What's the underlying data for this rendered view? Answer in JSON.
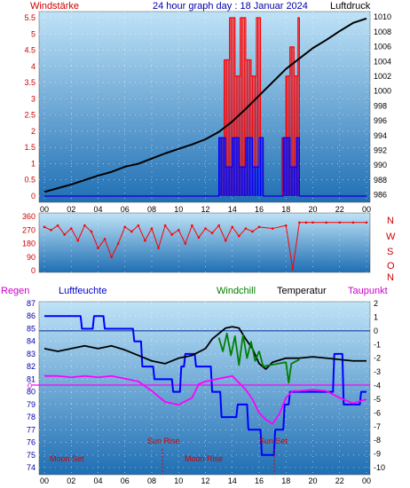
{
  "header": {
    "left_label": "Windstärke",
    "title": "24 hour graph day : 18 Januar 2024",
    "right_label": "Luftdruck"
  },
  "colors": {
    "panel_top": "#bfe3f7",
    "panel_bottom": "#1f6fb4",
    "wind_gust": "#ff0000",
    "wind_avg": "#0000ff",
    "pressure": "#000000",
    "direction": "#ff0000",
    "temperature": "#000000",
    "windchill": "#008000",
    "humidity": "#0000ff",
    "dewpoint": "#ff00ff",
    "zero_line": "#ff00ff"
  },
  "legend": {
    "regen": "Regen",
    "luftfeuchte": "Luftfeuchte",
    "windchill": "Windchill",
    "temperatur": "Temperatur",
    "taupunkt": "Taupunkt"
  },
  "x_ticks": [
    "00",
    "02",
    "04",
    "06",
    "08",
    "10",
    "12",
    "14",
    "16",
    "18",
    "20",
    "22",
    "00"
  ],
  "wind_panel": {
    "left_ticks": [
      "0",
      "0.5",
      "1",
      "1.5",
      "2",
      "2.5",
      "3",
      "3.5",
      "4",
      "4.5",
      "5",
      "5.5"
    ],
    "right_ticks": [
      "986",
      "988",
      "990",
      "992",
      "994",
      "996",
      "998",
      "1000",
      "1002",
      "1004",
      "1006",
      "1008",
      "1010"
    ]
  },
  "direction_panel": {
    "ticks": [
      "0",
      "90",
      "180",
      "270",
      "360"
    ],
    "compass": [
      "N",
      "W",
      "S",
      "O",
      "N"
    ]
  },
  "temp_panel": {
    "left_ticks": [
      "74",
      "75",
      "76",
      "77",
      "78",
      "79",
      "80",
      "81",
      "82",
      "83",
      "84",
      "85",
      "86",
      "87"
    ],
    "right_ticks": [
      "-10",
      "-9",
      "-8",
      "-7",
      "-6",
      "-5",
      "-4",
      "-3",
      "-2",
      "-1",
      "0",
      "1",
      "2"
    ],
    "rain_zero": "0",
    "events": {
      "moon_set": "Moon Set",
      "sun_rise": "Sun Rise",
      "moon_rise": "Moon Rise",
      "sun_set": "Sun Set"
    }
  },
  "chart_data": [
    {
      "type": "line",
      "title": "24 hour graph day : 18 Januar 2024",
      "ylabel": "Windstärke",
      "y2label": "Luftdruck",
      "xlim": [
        0,
        24
      ],
      "ylim": [
        0,
        5.5
      ],
      "y2lim": [
        985,
        1010.5
      ],
      "series": [
        {
          "name": "Luftdruck",
          "axis": "right",
          "x": [
            0,
            1,
            2,
            3,
            4,
            5,
            6,
            7,
            8,
            9,
            10,
            11,
            12,
            13,
            14,
            15,
            16,
            17,
            18,
            19,
            20,
            21,
            22,
            23,
            24
          ],
          "y": [
            986.4,
            986.9,
            987.4,
            988.0,
            988.6,
            989.1,
            989.8,
            990.2,
            990.9,
            991.6,
            992.2,
            992.8,
            993.5,
            994.5,
            995.9,
            997.6,
            999.4,
            1001.2,
            1003.0,
            1004.4,
            1005.8,
            1006.9,
            1008.1,
            1009.2,
            1009.8
          ]
        },
        {
          "name": "Böen",
          "axis": "left",
          "x": [
            0,
            12.9,
            13.0,
            13.4,
            13.8,
            14.2,
            14.6,
            15.0,
            15.4,
            15.8,
            16.1,
            16.3,
            17.4,
            17.7,
            18.0,
            18.3,
            18.6,
            18.9,
            19.0,
            24
          ],
          "y": [
            0,
            0,
            1.8,
            4.2,
            5.5,
            3.7,
            5.5,
            4.2,
            3.7,
            5.5,
            1.8,
            0,
            0,
            1.8,
            3.7,
            4.6,
            3.7,
            5.5,
            0,
            0
          ]
        },
        {
          "name": "Mittelwind",
          "axis": "left",
          "x": [
            0,
            12.9,
            13.0,
            13.5,
            14.0,
            14.5,
            15.0,
            15.5,
            16.0,
            16.3,
            17.4,
            17.8,
            18.3,
            18.8,
            19.0,
            24
          ],
          "y": [
            0,
            0,
            1.8,
            0.9,
            1.8,
            0.9,
            1.8,
            0.9,
            1.8,
            0,
            0,
            1.8,
            0.9,
            1.8,
            0,
            0
          ]
        }
      ]
    },
    {
      "type": "scatter",
      "ylabel": "Windrichtung",
      "xlim": [
        0,
        24
      ],
      "ylim": [
        0,
        360
      ],
      "series": [
        {
          "name": "Windrichtung",
          "x": [
            0,
            0.5,
            1,
            1.5,
            2,
            2.5,
            3,
            3.5,
            4,
            4.5,
            5,
            5.5,
            6,
            6.5,
            7,
            7.5,
            8,
            8.5,
            9,
            9.5,
            10,
            10.5,
            11,
            11.5,
            12,
            12.5,
            13,
            13.5,
            14,
            14.5,
            15,
            15.5,
            16,
            17,
            18,
            18.5,
            19,
            19.5,
            20,
            21,
            22,
            23,
            24
          ],
          "y": [
            290,
            270,
            300,
            240,
            280,
            200,
            300,
            260,
            150,
            210,
            90,
            180,
            290,
            260,
            300,
            200,
            280,
            150,
            300,
            240,
            270,
            180,
            300,
            220,
            280,
            250,
            300,
            200,
            290,
            230,
            280,
            260,
            290,
            280,
            300,
            10,
            320,
            320,
            320,
            320,
            320,
            320,
            320
          ]
        }
      ]
    },
    {
      "type": "line",
      "ylabel": "Luftfeuchte",
      "y2label": "Temperatur",
      "xlim": [
        0,
        24
      ],
      "ylim": [
        74,
        87
      ],
      "y2lim": [
        -10,
        2
      ],
      "series": [
        {
          "name": "Luftfeuchte",
          "axis": "left",
          "x": [
            0,
            2.7,
            2.8,
            3.6,
            3.7,
            4.4,
            4.5,
            6.6,
            6.7,
            7.2,
            7.3,
            8.1,
            8.2,
            9.5,
            9.6,
            10.1,
            10.2,
            10.4,
            10.5,
            11.2,
            11.3,
            12.4,
            12.5,
            13.1,
            13.2,
            14.3,
            14.4,
            15.1,
            15.2,
            16.1,
            16.2,
            17.1,
            17.2,
            17.8,
            17.9,
            18.2,
            18.3,
            21.5,
            21.6,
            22.2,
            22.3,
            23.5,
            23.6,
            24
          ],
          "y": [
            86,
            86,
            85,
            85,
            86,
            86,
            85,
            85,
            84,
            84,
            82,
            82,
            81,
            81,
            80,
            80,
            82,
            82,
            83,
            83,
            82,
            82,
            80,
            80,
            78,
            78,
            79,
            79,
            77,
            77,
            75,
            75,
            77,
            77,
            79,
            79,
            80,
            80,
            83,
            83,
            79,
            79,
            80,
            80
          ]
        },
        {
          "name": "Temperatur",
          "axis": "right",
          "x": [
            0,
            1,
            2,
            3,
            4,
            5,
            6,
            7,
            8,
            9,
            10,
            11,
            12,
            12.5,
            13,
            13.5,
            14,
            14.5,
            15,
            15.5,
            16,
            16.5,
            17,
            18,
            19,
            20,
            21,
            22,
            23,
            24
          ],
          "y": [
            -1.3,
            -1.5,
            -1.3,
            -1.1,
            -1.3,
            -1.1,
            -1.4,
            -1.8,
            -2.2,
            -2.4,
            -2.0,
            -1.8,
            -1.3,
            -0.6,
            -0.2,
            0.2,
            0.3,
            0.2,
            -0.6,
            -1.3,
            -2.4,
            -2.8,
            -2.3,
            -2.0,
            -2.0,
            -1.9,
            -2.0,
            -2.1,
            -2.2,
            -2.2
          ]
        },
        {
          "name": "Windchill",
          "axis": "right",
          "x": [
            13,
            13.3,
            13.6,
            13.9,
            14.2,
            14.5,
            14.8,
            15.1,
            15.4,
            15.7,
            16.0,
            16.3,
            18.0,
            18.2,
            18.4,
            19.0
          ],
          "y": [
            -0.5,
            -1.5,
            -0.2,
            -1.8,
            -0.4,
            -2.5,
            -0.3,
            -2.0,
            -0.8,
            -2.2,
            -1.5,
            -2.6,
            -2.3,
            -3.8,
            -2.4,
            -2.1
          ]
        },
        {
          "name": "Taupunkt",
          "axis": "right",
          "x": [
            0,
            1,
            2,
            3,
            4,
            5,
            6,
            7,
            8,
            8.5,
            9,
            10,
            11,
            11.5,
            12,
            13,
            14,
            14.5,
            15,
            15.5,
            16,
            16.5,
            17,
            17.5,
            18,
            18.5,
            19,
            20,
            21,
            22,
            23,
            24
          ],
          "y": [
            -3.3,
            -3.3,
            -3.4,
            -3.3,
            -3.4,
            -3.3,
            -3.5,
            -3.7,
            -4.4,
            -4.8,
            -5.2,
            -5.4,
            -4.9,
            -3.9,
            -3.7,
            -3.5,
            -3.3,
            -3.8,
            -4.3,
            -5.0,
            -6.0,
            -6.5,
            -6.8,
            -6.1,
            -4.9,
            -4.4,
            -4.4,
            -4.3,
            -4.4,
            -4.9,
            -5.3,
            -5.0
          ]
        }
      ]
    }
  ]
}
